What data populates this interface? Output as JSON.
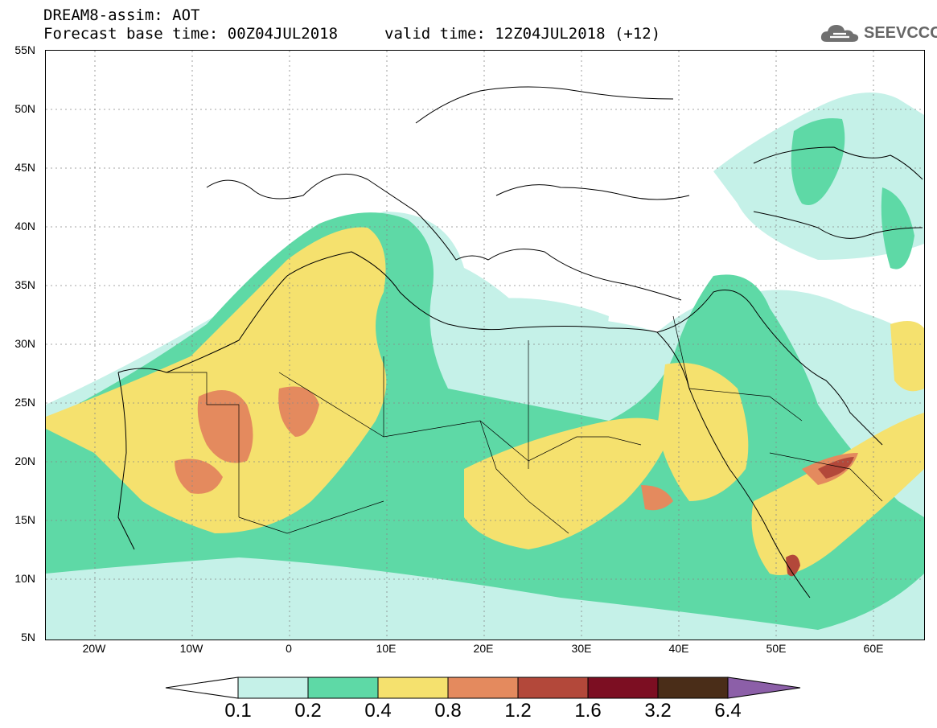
{
  "header": {
    "line1": "DREAM8-assim: AOT",
    "line2": "Forecast base time: 00Z04JUL2018",
    "valid": "valid time: 12Z04JUL2018 (+12)",
    "logo_text": "SEEVCCC",
    "logo_icon": "cloud-logo-icon"
  },
  "axes": {
    "lat_labels": [
      "55N",
      "50N",
      "45N",
      "40N",
      "35N",
      "30N",
      "25N",
      "20N",
      "15N",
      "10N",
      "5N"
    ],
    "lon_labels": [
      "20W",
      "10W",
      "0",
      "10E",
      "20E",
      "30E",
      "40E",
      "50E",
      "60E"
    ],
    "lat_range": [
      5,
      55
    ],
    "lon_range": [
      -25,
      65
    ]
  },
  "colorbar": {
    "levels": [
      "0.1",
      "0.2",
      "0.4",
      "0.8",
      "1.2",
      "1.6",
      "3.2",
      "6.4"
    ],
    "colors": [
      "#c5f1e8",
      "#5ed9a6",
      "#f5e16e",
      "#e48a5e",
      "#b3483a",
      "#7c0e22",
      "#4a2d18"
    ],
    "under_color": "#ffffff",
    "over_color": "#8c5fa8"
  }
}
